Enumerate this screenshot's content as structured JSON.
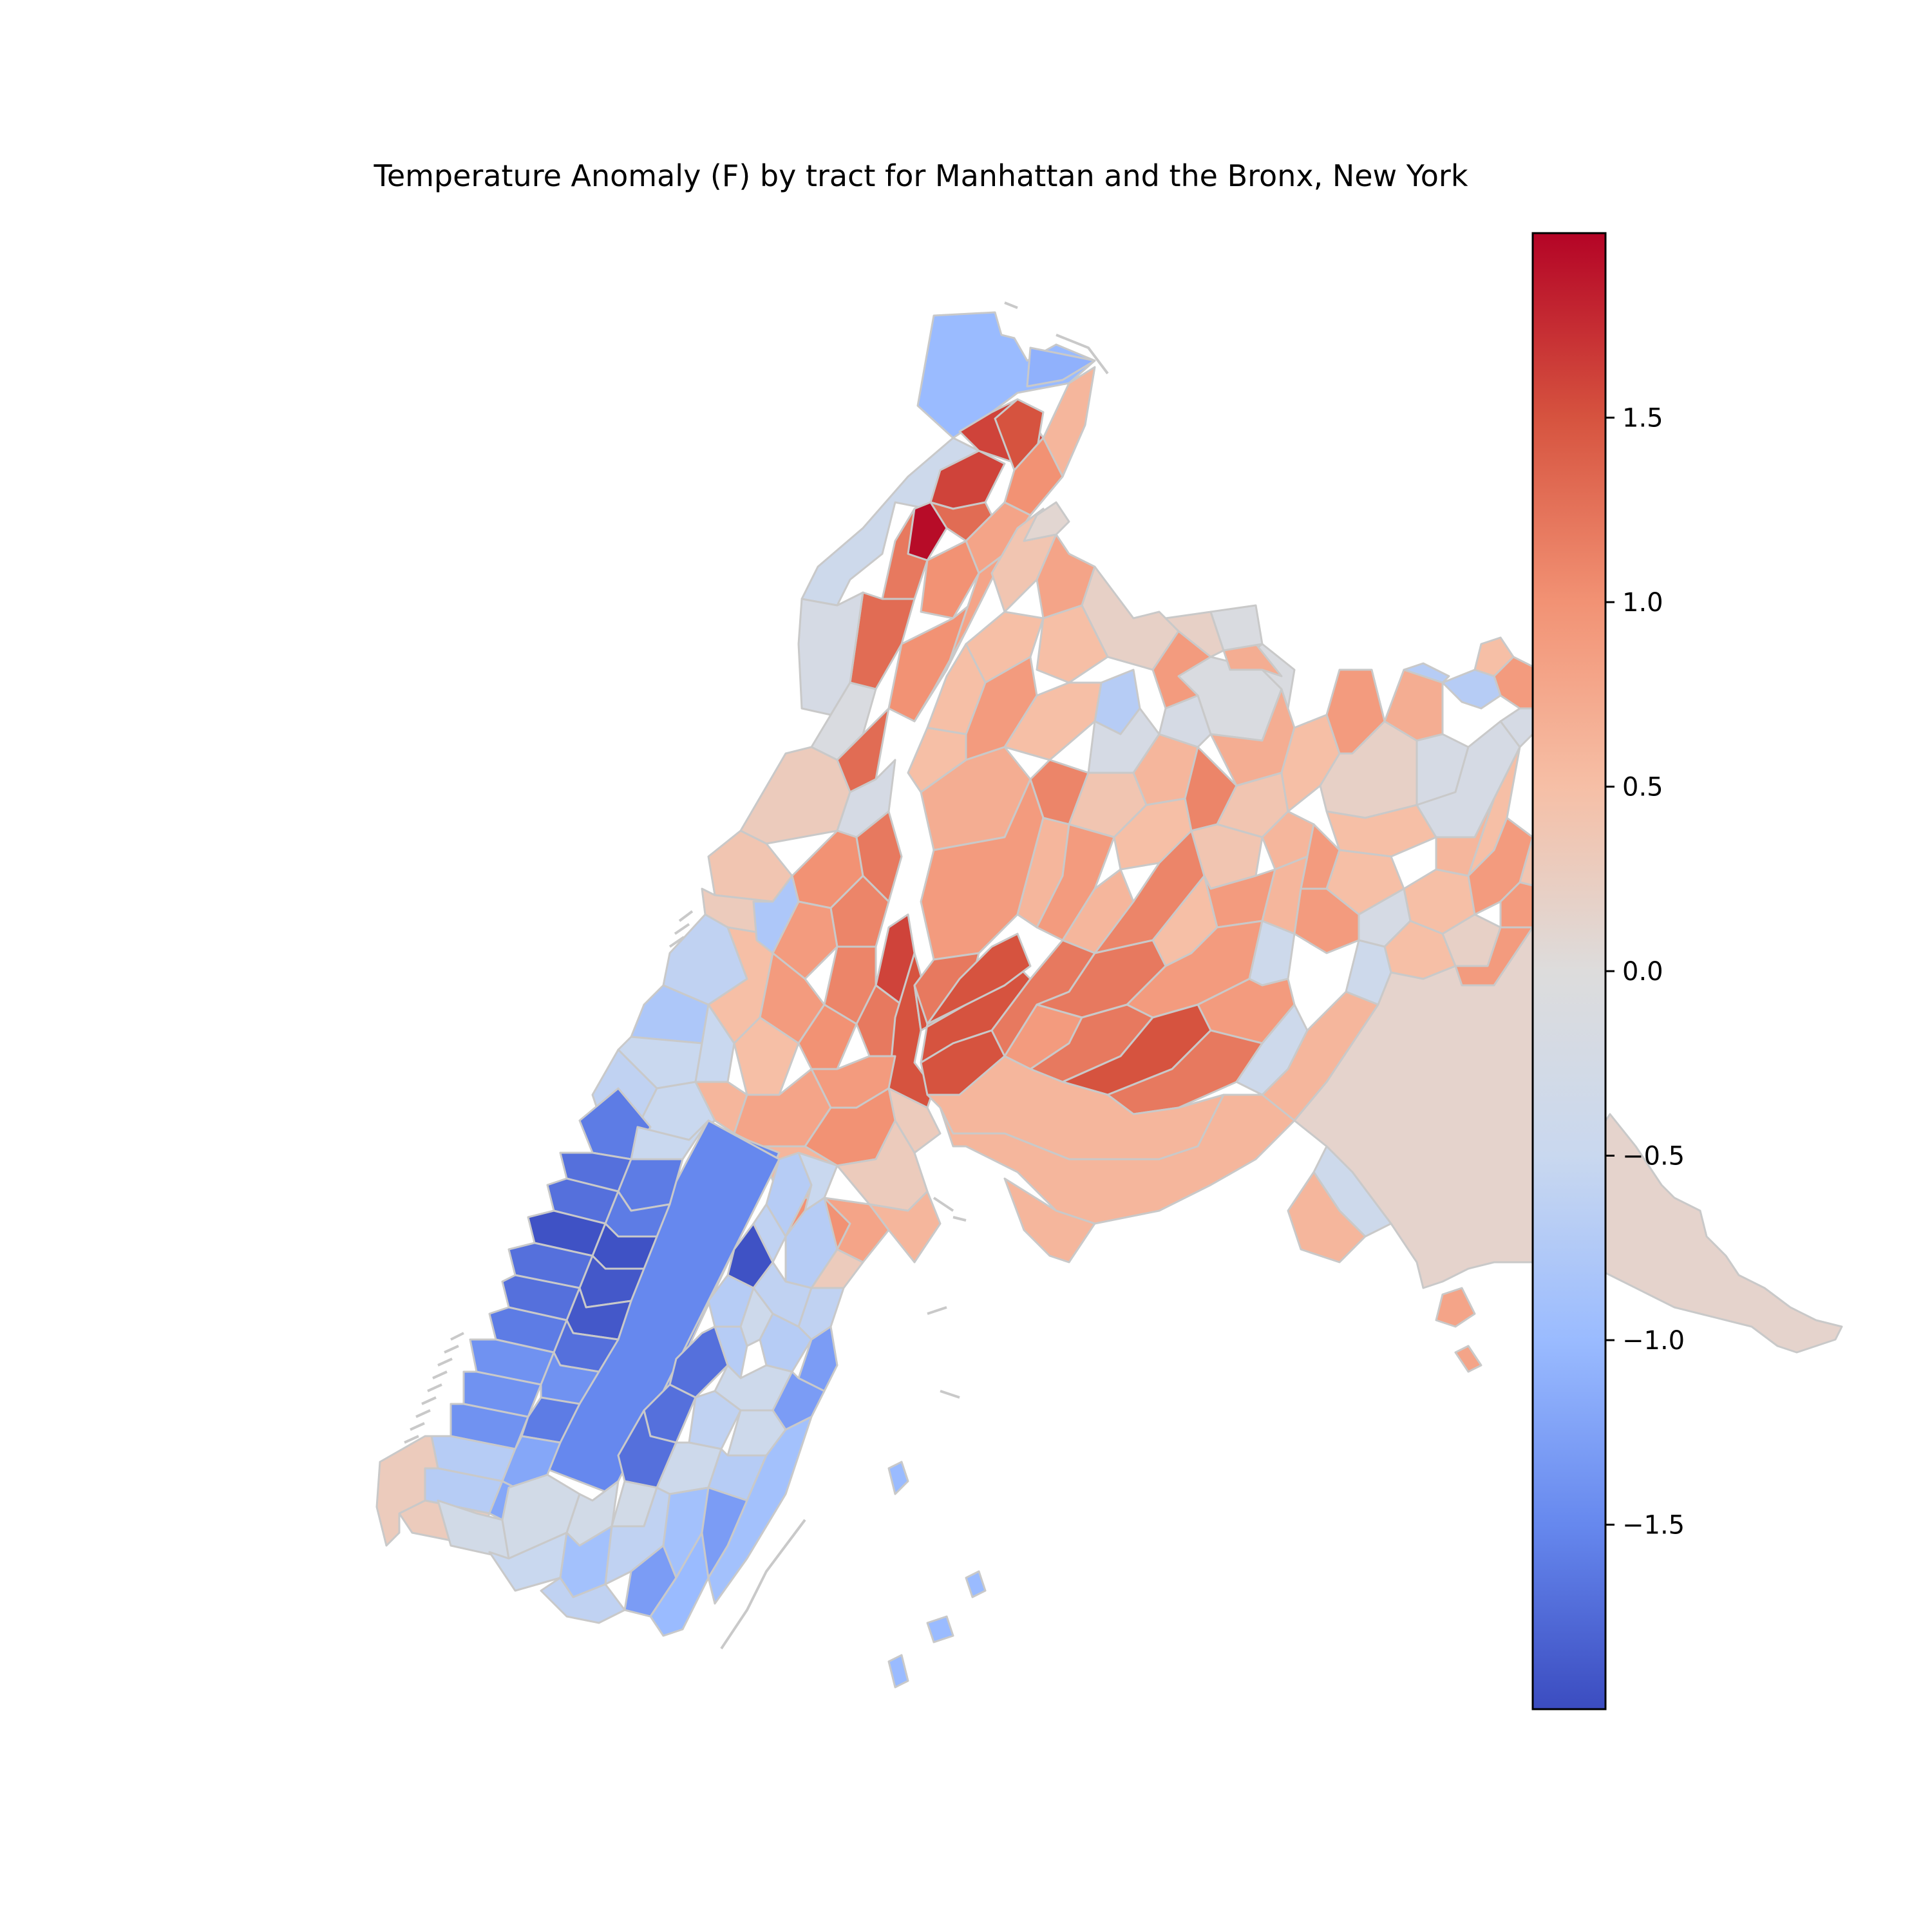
{
  "title": "Temperature Anomaly (F) by tract for Manhattan and the Bronx, New York",
  "colormap": {
    "name": "coolwarm",
    "vmin": -2.0,
    "vmax": 2.0,
    "stops": [
      "#3b4cc0",
      "#6688ee",
      "#9abbff",
      "#c9d8ef",
      "#dddcdc",
      "#f6bfa6",
      "#f29274",
      "#d6533f",
      "#b40426"
    ]
  },
  "colorbar": {
    "ticks": [
      {
        "value": 1.5,
        "label": "1.5"
      },
      {
        "value": 1.0,
        "label": "1.0"
      },
      {
        "value": 0.5,
        "label": "0.5"
      },
      {
        "value": 0.0,
        "label": "0.0"
      },
      {
        "value": -0.5,
        "label": "−0.5"
      },
      {
        "value": -1.0,
        "label": "−1.0"
      },
      {
        "value": -1.5,
        "label": "−1.5"
      }
    ]
  },
  "tracts": [
    {
      "id": "inwood-park",
      "value": -1.0
    },
    {
      "id": "marble-hill",
      "value": -1.1
    },
    {
      "id": "inwood-east",
      "value": 0.6
    },
    {
      "id": "inwood-1",
      "value": 1.6
    },
    {
      "id": "inwood-2",
      "value": 1.5
    },
    {
      "id": "inwood-3",
      "value": 1.0
    },
    {
      "id": "fort-tryon",
      "value": -0.4
    },
    {
      "id": "wash-heights-1",
      "value": 1.6
    },
    {
      "id": "wash-heights-hot",
      "value": 1.95
    },
    {
      "id": "wash-heights-2",
      "value": 1.3
    },
    {
      "id": "wash-heights-3",
      "value": 0.8
    },
    {
      "id": "wash-heights-4",
      "value": 1.2
    },
    {
      "id": "wash-heights-5",
      "value": 1.0
    },
    {
      "id": "wash-heights-6",
      "value": 1.3
    },
    {
      "id": "wash-heights-w1",
      "value": -0.2
    },
    {
      "id": "wash-heights-w2",
      "value": -0.1
    },
    {
      "id": "harlem-w1",
      "value": 0.3
    },
    {
      "id": "harlem-w2",
      "value": 0.4
    },
    {
      "id": "harlem-w3",
      "value": -0.2
    },
    {
      "id": "harlem-c1",
      "value": 1.0
    },
    {
      "id": "harlem-c2",
      "value": 1.2
    },
    {
      "id": "harlem-c3",
      "value": 1.6
    },
    {
      "id": "harlem-c4",
      "value": 1.1
    },
    {
      "id": "harlem-c5",
      "value": 0.9
    },
    {
      "id": "harlem-e1",
      "value": 1.5
    },
    {
      "id": "harlem-e2",
      "value": 0.3
    },
    {
      "id": "uws-1",
      "value": -0.6
    },
    {
      "id": "uws-2",
      "value": -0.8
    },
    {
      "id": "uws-3",
      "value": -0.5
    },
    {
      "id": "uws-4",
      "value": 0.5
    },
    {
      "id": "ues-1",
      "value": 0.8
    },
    {
      "id": "ues-2",
      "value": 1.0
    },
    {
      "id": "ues-3",
      "value": 0.6
    },
    {
      "id": "ues-4",
      "value": 0.3
    },
    {
      "id": "central-park",
      "value": -1.5
    },
    {
      "id": "midtown-w1",
      "value": -1.7
    },
    {
      "id": "midtown-w2",
      "value": -1.95
    },
    {
      "id": "midtown-w3",
      "value": -1.6
    },
    {
      "id": "midtown-w4",
      "value": -1.9
    },
    {
      "id": "midtown-w5",
      "value": -1.4
    },
    {
      "id": "midtown-e1",
      "value": -0.7
    },
    {
      "id": "midtown-e2",
      "value": -1.95
    },
    {
      "id": "midtown-e3",
      "value": -0.6
    },
    {
      "id": "midtown-e4",
      "value": -1.3
    },
    {
      "id": "midtown-c1",
      "value": -1.7
    },
    {
      "id": "midtown-c2",
      "value": -0.4
    },
    {
      "id": "chelsea-1",
      "value": -0.7
    },
    {
      "id": "chelsea-2",
      "value": -1.2
    },
    {
      "id": "downtown-1",
      "value": 0.3
    },
    {
      "id": "downtown-2",
      "value": -0.3
    },
    {
      "id": "downtown-3",
      "value": -0.5
    },
    {
      "id": "downtown-4",
      "value": -0.9
    },
    {
      "id": "downtown-5",
      "value": -1.3
    },
    {
      "id": "downtown-6",
      "value": -0.6
    },
    {
      "id": "downtown-7",
      "value": -1.0
    },
    {
      "id": "bronx-nw1",
      "value": 0.4
    },
    {
      "id": "bronx-nw2",
      "value": 0.8
    },
    {
      "id": "bronx-nw3",
      "value": 0.1
    },
    {
      "id": "bronx-n1",
      "value": 0.2
    },
    {
      "id": "bronx-n2",
      "value": 0.5
    },
    {
      "id": "bronx-n3",
      "value": 0.9
    },
    {
      "id": "bronx-n4",
      "value": -0.7
    },
    {
      "id": "bronx-ne1",
      "value": -0.1
    },
    {
      "id": "bronx-ne2",
      "value": 0.7
    },
    {
      "id": "bronx-c1",
      "value": 0.9
    },
    {
      "id": "bronx-c2",
      "value": 0.5
    },
    {
      "id": "bronx-c3",
      "value": -0.2
    },
    {
      "id": "bronx-c4",
      "value": 1.1
    },
    {
      "id": "bronx-c5",
      "value": 0.6
    },
    {
      "id": "bronx-c6",
      "value": 0.4
    },
    {
      "id": "bronx-e1",
      "value": 0.5
    },
    {
      "id": "bronx-e2",
      "value": 0.9
    },
    {
      "id": "bronx-e3",
      "value": 0.2
    },
    {
      "id": "bronx-s1",
      "value": 1.5
    },
    {
      "id": "bronx-s2",
      "value": 1.2
    },
    {
      "id": "bronx-s3",
      "value": 0.9
    },
    {
      "id": "bronx-s4",
      "value": -0.4
    },
    {
      "id": "bronx-s5",
      "value": 0.6
    },
    {
      "id": "bronx-sw",
      "value": 0.7
    },
    {
      "id": "throgs-neck",
      "value": 0.15
    },
    {
      "id": "bronx-east-edge",
      "value": 0.8
    },
    {
      "id": "island-1",
      "value": 0.8
    },
    {
      "id": "roosevelt-isl",
      "value": -1.0
    }
  ]
}
